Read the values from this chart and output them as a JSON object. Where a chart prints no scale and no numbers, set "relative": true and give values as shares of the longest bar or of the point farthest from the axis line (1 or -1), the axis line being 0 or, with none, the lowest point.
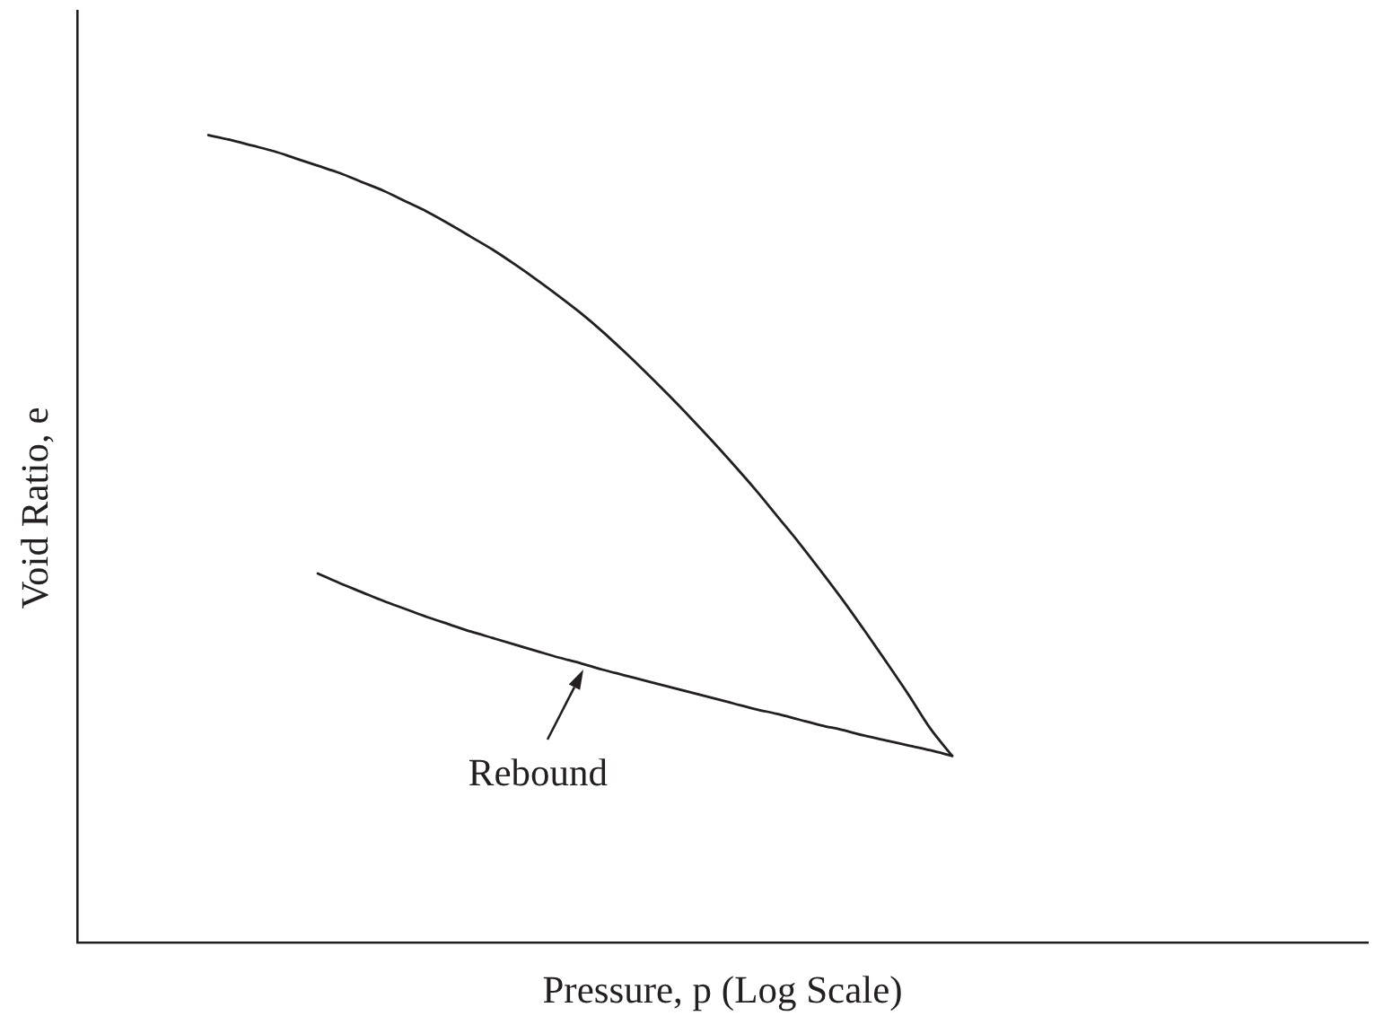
{
  "chart_data": {
    "type": "line",
    "xlabel": "Pressure, p (Log Scale)",
    "ylabel": "Void Ratio, e",
    "relative": true,
    "grid": false,
    "marker": "none",
    "tick_labels": false,
    "categories": [
      null,
      null,
      null,
      null,
      null,
      null,
      null,
      null,
      null,
      null,
      null,
      null,
      null,
      null,
      null,
      null,
      null,
      null,
      null,
      null,
      null,
      null,
      null,
      null,
      null,
      null,
      null,
      null,
      null,
      null,
      null,
      null,
      null,
      null,
      null,
      null,
      null,
      null,
      null,
      null,
      null,
      null,
      null,
      null,
      null,
      null,
      null,
      null,
      null,
      null,
      null,
      null,
      null,
      null,
      null,
      null,
      null,
      null,
      null,
      null
    ],
    "series": [
      {
        "color": "#231f20",
        "values": [
          null,
          null,
          null,
          null,
          null,
          null,
          1,
          0.994,
          0.987,
          0.98,
          0.971,
          0.962,
          0.953,
          0.942,
          0.931,
          0.918,
          0.905,
          0.89,
          0.874,
          0.858,
          0.84,
          0.821,
          0.801,
          0.78,
          0.757,
          0.732,
          0.706,
          0.679,
          0.651,
          0.622,
          0.592,
          0.561,
          0.528,
          0.495,
          0.46,
          0.424,
          0.386,
          0.347,
          0.307,
          0.265,
          0.231,
          null,
          null,
          null,
          null,
          null,
          null,
          null,
          null,
          null,
          null,
          null,
          null,
          null,
          null,
          null,
          null,
          null,
          null,
          null
        ]
      },
      {
        "color": "#231f20",
        "values": [
          null,
          null,
          null,
          null,
          null,
          null,
          null,
          null,
          null,
          null,
          null,
          0.457,
          0.445,
          0.434,
          0.423,
          0.413,
          0.403,
          0.394,
          0.385,
          0.377,
          0.369,
          0.361,
          0.353,
          0.346,
          0.338,
          0.331,
          0.324,
          0.317,
          0.31,
          0.303,
          0.296,
          0.289,
          0.283,
          0.276,
          0.269,
          0.263,
          0.256,
          0.25,
          0.244,
          0.238,
          0.231,
          null,
          null,
          null,
          null,
          null,
          null,
          null,
          null,
          null,
          null,
          null,
          null,
          null,
          null,
          null,
          null,
          null,
          null,
          null
        ]
      }
    ],
    "annotations": [
      "Rebound"
    ]
  }
}
